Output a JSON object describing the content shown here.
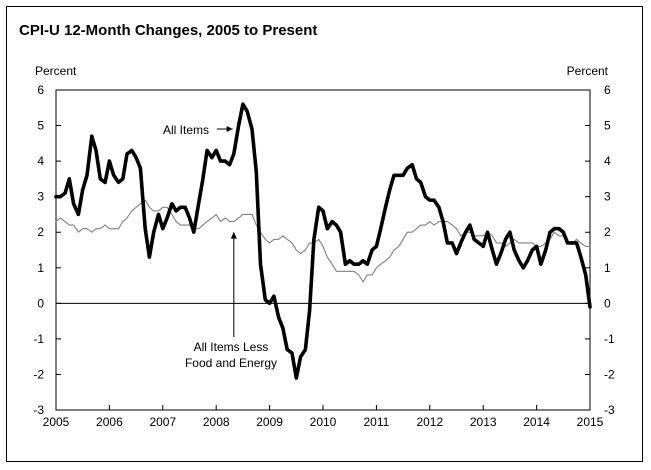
{
  "chart_data": {
    "type": "line",
    "title": "CPI-U 12-Month Changes, 2005 to Present",
    "ylabel_left": "Percent",
    "ylabel_right": "Percent",
    "xlabel": "",
    "ylim": [
      -3,
      6
    ],
    "xlim": [
      2005,
      2015
    ],
    "yticks": [
      6,
      5,
      4,
      3,
      2,
      1,
      0,
      -1,
      -2,
      -3
    ],
    "xticks": [
      2005,
      2006,
      2007,
      2008,
      2009,
      2010,
      2011,
      2012,
      2013,
      2014,
      2015
    ],
    "grid": false,
    "zero_line": true,
    "series": [
      {
        "name": "All Items",
        "color": "#000000",
        "style": "thick",
        "points": [
          [
            2005.0,
            3.0
          ],
          [
            2005.08,
            3.0
          ],
          [
            2005.17,
            3.1
          ],
          [
            2005.25,
            3.5
          ],
          [
            2005.33,
            2.8
          ],
          [
            2005.42,
            2.5
          ],
          [
            2005.5,
            3.2
          ],
          [
            2005.58,
            3.6
          ],
          [
            2005.67,
            4.7
          ],
          [
            2005.75,
            4.3
          ],
          [
            2005.83,
            3.5
          ],
          [
            2005.92,
            3.4
          ],
          [
            2006.0,
            4.0
          ],
          [
            2006.08,
            3.6
          ],
          [
            2006.17,
            3.4
          ],
          [
            2006.25,
            3.5
          ],
          [
            2006.33,
            4.2
          ],
          [
            2006.42,
            4.3
          ],
          [
            2006.5,
            4.1
          ],
          [
            2006.58,
            3.8
          ],
          [
            2006.67,
            2.1
          ],
          [
            2006.75,
            1.3
          ],
          [
            2006.83,
            2.0
          ],
          [
            2006.92,
            2.5
          ],
          [
            2007.0,
            2.1
          ],
          [
            2007.08,
            2.4
          ],
          [
            2007.17,
            2.8
          ],
          [
            2007.25,
            2.6
          ],
          [
            2007.33,
            2.7
          ],
          [
            2007.42,
            2.7
          ],
          [
            2007.5,
            2.4
          ],
          [
            2007.58,
            2.0
          ],
          [
            2007.67,
            2.8
          ],
          [
            2007.75,
            3.5
          ],
          [
            2007.83,
            4.3
          ],
          [
            2007.92,
            4.1
          ],
          [
            2008.0,
            4.3
          ],
          [
            2008.08,
            4.0
          ],
          [
            2008.17,
            4.0
          ],
          [
            2008.25,
            3.9
          ],
          [
            2008.33,
            4.2
          ],
          [
            2008.42,
            5.0
          ],
          [
            2008.5,
            5.6
          ],
          [
            2008.58,
            5.4
          ],
          [
            2008.67,
            4.9
          ],
          [
            2008.75,
            3.7
          ],
          [
            2008.83,
            1.1
          ],
          [
            2008.92,
            0.1
          ],
          [
            2009.0,
            0.0
          ],
          [
            2009.08,
            0.2
          ],
          [
            2009.17,
            -0.4
          ],
          [
            2009.25,
            -0.7
          ],
          [
            2009.33,
            -1.3
          ],
          [
            2009.42,
            -1.4
          ],
          [
            2009.5,
            -2.1
          ],
          [
            2009.58,
            -1.5
          ],
          [
            2009.67,
            -1.3
          ],
          [
            2009.75,
            -0.2
          ],
          [
            2009.83,
            1.8
          ],
          [
            2009.92,
            2.7
          ],
          [
            2010.0,
            2.6
          ],
          [
            2010.08,
            2.1
          ],
          [
            2010.17,
            2.3
          ],
          [
            2010.25,
            2.2
          ],
          [
            2010.33,
            2.0
          ],
          [
            2010.42,
            1.1
          ],
          [
            2010.5,
            1.2
          ],
          [
            2010.58,
            1.1
          ],
          [
            2010.67,
            1.1
          ],
          [
            2010.75,
            1.2
          ],
          [
            2010.83,
            1.1
          ],
          [
            2010.92,
            1.5
          ],
          [
            2011.0,
            1.6
          ],
          [
            2011.08,
            2.1
          ],
          [
            2011.17,
            2.7
          ],
          [
            2011.25,
            3.2
          ],
          [
            2011.33,
            3.6
          ],
          [
            2011.42,
            3.6
          ],
          [
            2011.5,
            3.6
          ],
          [
            2011.58,
            3.8
          ],
          [
            2011.67,
            3.9
          ],
          [
            2011.75,
            3.5
          ],
          [
            2011.83,
            3.4
          ],
          [
            2011.92,
            3.0
          ],
          [
            2012.0,
            2.9
          ],
          [
            2012.08,
            2.9
          ],
          [
            2012.17,
            2.7
          ],
          [
            2012.25,
            2.3
          ],
          [
            2012.33,
            1.7
          ],
          [
            2012.42,
            1.7
          ],
          [
            2012.5,
            1.4
          ],
          [
            2012.58,
            1.7
          ],
          [
            2012.67,
            2.0
          ],
          [
            2012.75,
            2.2
          ],
          [
            2012.83,
            1.8
          ],
          [
            2012.92,
            1.7
          ],
          [
            2013.0,
            1.6
          ],
          [
            2013.08,
            2.0
          ],
          [
            2013.17,
            1.5
          ],
          [
            2013.25,
            1.1
          ],
          [
            2013.33,
            1.4
          ],
          [
            2013.42,
            1.8
          ],
          [
            2013.5,
            2.0
          ],
          [
            2013.58,
            1.5
          ],
          [
            2013.67,
            1.2
          ],
          [
            2013.75,
            1.0
          ],
          [
            2013.83,
            1.2
          ],
          [
            2013.92,
            1.5
          ],
          [
            2014.0,
            1.6
          ],
          [
            2014.08,
            1.1
          ],
          [
            2014.17,
            1.5
          ],
          [
            2014.25,
            2.0
          ],
          [
            2014.33,
            2.1
          ],
          [
            2014.42,
            2.1
          ],
          [
            2014.5,
            2.0
          ],
          [
            2014.58,
            1.7
          ],
          [
            2014.67,
            1.7
          ],
          [
            2014.75,
            1.7
          ],
          [
            2014.83,
            1.3
          ],
          [
            2014.92,
            0.8
          ],
          [
            2015.0,
            -0.1
          ]
        ]
      },
      {
        "name": "All Items Less Food and Energy",
        "color": "#808080",
        "style": "thin",
        "points": [
          [
            2005.0,
            2.3
          ],
          [
            2005.08,
            2.4
          ],
          [
            2005.17,
            2.3
          ],
          [
            2005.25,
            2.2
          ],
          [
            2005.33,
            2.2
          ],
          [
            2005.42,
            2.0
          ],
          [
            2005.5,
            2.1
          ],
          [
            2005.58,
            2.1
          ],
          [
            2005.67,
            2.0
          ],
          [
            2005.75,
            2.1
          ],
          [
            2005.83,
            2.1
          ],
          [
            2005.92,
            2.2
          ],
          [
            2006.0,
            2.1
          ],
          [
            2006.08,
            2.1
          ],
          [
            2006.17,
            2.1
          ],
          [
            2006.25,
            2.3
          ],
          [
            2006.33,
            2.4
          ],
          [
            2006.42,
            2.6
          ],
          [
            2006.5,
            2.7
          ],
          [
            2006.58,
            2.8
          ],
          [
            2006.67,
            2.9
          ],
          [
            2006.75,
            2.7
          ],
          [
            2006.83,
            2.6
          ],
          [
            2006.92,
            2.6
          ],
          [
            2007.0,
            2.7
          ],
          [
            2007.08,
            2.7
          ],
          [
            2007.17,
            2.5
          ],
          [
            2007.25,
            2.3
          ],
          [
            2007.33,
            2.2
          ],
          [
            2007.42,
            2.2
          ],
          [
            2007.5,
            2.2
          ],
          [
            2007.58,
            2.1
          ],
          [
            2007.67,
            2.1
          ],
          [
            2007.75,
            2.2
          ],
          [
            2007.83,
            2.3
          ],
          [
            2007.92,
            2.4
          ],
          [
            2008.0,
            2.5
          ],
          [
            2008.08,
            2.3
          ],
          [
            2008.17,
            2.4
          ],
          [
            2008.25,
            2.3
          ],
          [
            2008.33,
            2.3
          ],
          [
            2008.42,
            2.4
          ],
          [
            2008.5,
            2.5
          ],
          [
            2008.58,
            2.5
          ],
          [
            2008.67,
            2.5
          ],
          [
            2008.75,
            2.2
          ],
          [
            2008.83,
            2.0
          ],
          [
            2008.92,
            1.8
          ],
          [
            2009.0,
            1.7
          ],
          [
            2009.08,
            1.8
          ],
          [
            2009.17,
            1.8
          ],
          [
            2009.25,
            1.9
          ],
          [
            2009.33,
            1.8
          ],
          [
            2009.42,
            1.7
          ],
          [
            2009.5,
            1.5
          ],
          [
            2009.58,
            1.4
          ],
          [
            2009.67,
            1.5
          ],
          [
            2009.75,
            1.7
          ],
          [
            2009.83,
            1.7
          ],
          [
            2009.92,
            1.8
          ],
          [
            2010.0,
            1.6
          ],
          [
            2010.08,
            1.3
          ],
          [
            2010.17,
            1.1
          ],
          [
            2010.25,
            0.9
          ],
          [
            2010.33,
            0.9
          ],
          [
            2010.42,
            0.9
          ],
          [
            2010.5,
            0.9
          ],
          [
            2010.58,
            0.9
          ],
          [
            2010.67,
            0.8
          ],
          [
            2010.75,
            0.6
          ],
          [
            2010.83,
            0.8
          ],
          [
            2010.92,
            0.8
          ],
          [
            2011.0,
            1.0
          ],
          [
            2011.08,
            1.1
          ],
          [
            2011.17,
            1.2
          ],
          [
            2011.25,
            1.3
          ],
          [
            2011.33,
            1.5
          ],
          [
            2011.42,
            1.6
          ],
          [
            2011.5,
            1.8
          ],
          [
            2011.58,
            2.0
          ],
          [
            2011.67,
            2.0
          ],
          [
            2011.75,
            2.1
          ],
          [
            2011.83,
            2.2
          ],
          [
            2011.92,
            2.2
          ],
          [
            2012.0,
            2.3
          ],
          [
            2012.08,
            2.2
          ],
          [
            2012.17,
            2.3
          ],
          [
            2012.25,
            2.3
          ],
          [
            2012.33,
            2.3
          ],
          [
            2012.42,
            2.2
          ],
          [
            2012.5,
            2.1
          ],
          [
            2012.58,
            1.9
          ],
          [
            2012.67,
            2.0
          ],
          [
            2012.75,
            2.0
          ],
          [
            2012.83,
            1.9
          ],
          [
            2012.92,
            1.9
          ],
          [
            2013.0,
            1.9
          ],
          [
            2013.08,
            2.0
          ],
          [
            2013.17,
            1.9
          ],
          [
            2013.25,
            1.7
          ],
          [
            2013.33,
            1.7
          ],
          [
            2013.42,
            1.6
          ],
          [
            2013.5,
            1.7
          ],
          [
            2013.58,
            1.8
          ],
          [
            2013.67,
            1.7
          ],
          [
            2013.75,
            1.7
          ],
          [
            2013.83,
            1.7
          ],
          [
            2013.92,
            1.7
          ],
          [
            2014.0,
            1.6
          ],
          [
            2014.08,
            1.6
          ],
          [
            2014.17,
            1.7
          ],
          [
            2014.25,
            1.8
          ],
          [
            2014.33,
            2.0
          ],
          [
            2014.42,
            1.9
          ],
          [
            2014.5,
            1.9
          ],
          [
            2014.58,
            1.7
          ],
          [
            2014.67,
            1.7
          ],
          [
            2014.75,
            1.8
          ],
          [
            2014.83,
            1.7
          ],
          [
            2014.92,
            1.6
          ],
          [
            2015.0,
            1.6
          ]
        ]
      }
    ],
    "annotations": [
      {
        "text": "All Items",
        "points_to": [
          2008.42,
          5.0
        ]
      },
      {
        "text_lines": [
          "All Items Less",
          "Food and Energy"
        ],
        "points_to": [
          2008.33,
          2.1
        ]
      }
    ]
  }
}
